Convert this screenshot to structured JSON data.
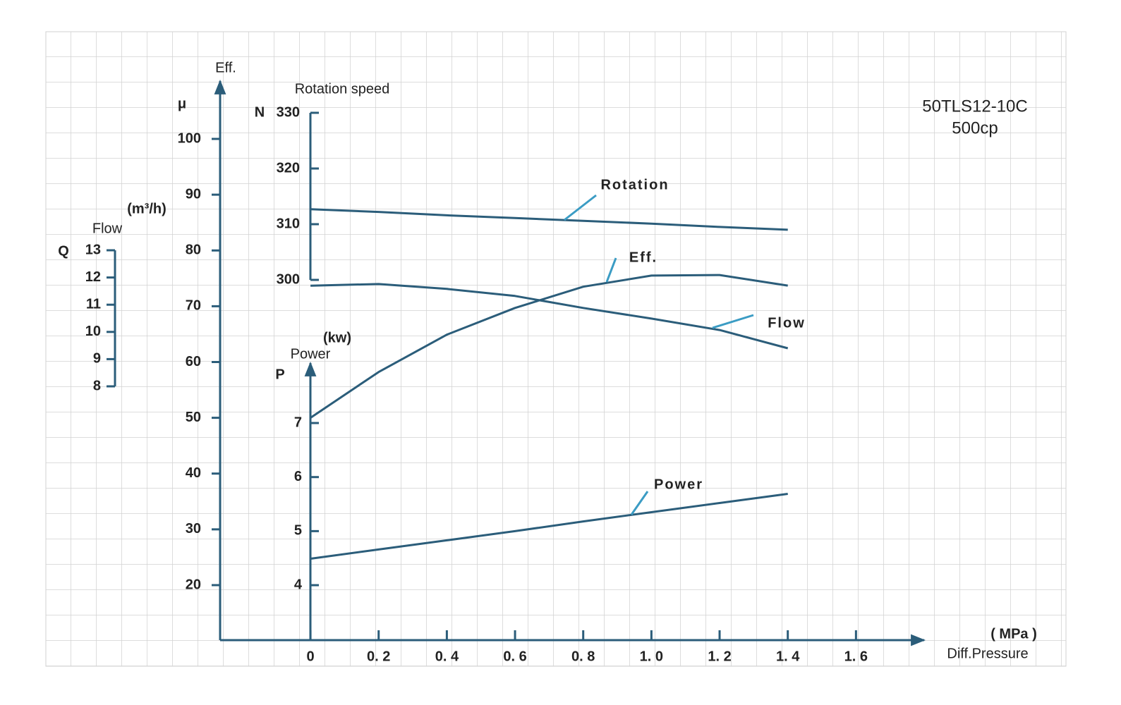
{
  "chart_data": {
    "type": "line",
    "title": "50TLS12-10C",
    "subtitle": "500cp",
    "x_label": "Diff.Pressure",
    "x_unit": "( MPa )",
    "xlim": [
      -0.265,
      1.8
    ],
    "xticks": [
      0,
      {
        "value": 0.2,
        "label": "0. 2"
      },
      {
        "value": 0.4,
        "label": "0. 4"
      },
      {
        "value": 0.6,
        "label": "0. 6"
      },
      {
        "value": 0.8,
        "label": "0. 8"
      },
      {
        "value": 1.0,
        "label": "1. 0"
      },
      {
        "value": 1.2,
        "label": "1. 2"
      },
      {
        "value": 1.4,
        "label": "1. 4"
      },
      {
        "value": 1.6,
        "label": "1. 6"
      }
    ],
    "x": [
      0,
      0.2,
      0.4,
      0.6,
      0.8,
      1.0,
      1.2,
      1.4
    ],
    "axes": [
      {
        "label": "Eff.",
        "symbol": "μ",
        "ylim": [
          10,
          110
        ],
        "yticks": [
          20,
          30,
          40,
          50,
          60,
          70,
          80,
          90,
          100
        ]
      },
      {
        "label": "Rotation speed",
        "symbol": "N",
        "ylim": [
          300,
          330
        ],
        "yticks": [
          300,
          310,
          320,
          330
        ]
      },
      {
        "label": "Flow",
        "unit": "(m³/h)",
        "symbol": "Q",
        "ylim": [
          8,
          13
        ],
        "yticks": [
          8,
          9,
          10,
          11,
          12,
          13
        ]
      },
      {
        "label": "Power",
        "unit": "(kw)",
        "symbol": "P",
        "ylim": [
          3,
          8.1
        ],
        "yticks": [
          4,
          5,
          6,
          7
        ]
      }
    ],
    "series": [
      {
        "name": "Rotation",
        "axis": 1,
        "color": "#2b5d7a",
        "values": [
          312.7,
          312.2,
          311.6,
          311.1,
          310.6,
          310.1,
          309.5,
          309.0
        ]
      },
      {
        "name": "Eff.",
        "axis": 0,
        "color": "#2b5d7a",
        "values": [
          50,
          58.2,
          64.9,
          69.7,
          73.5,
          75.5,
          75.6,
          73.7
        ]
      },
      {
        "name": "Flow",
        "axis": 2,
        "color": "#2b5d7a",
        "values": [
          11.7,
          11.76,
          11.58,
          11.32,
          10.88,
          10.49,
          10.07,
          9.4
        ]
      },
      {
        "name": "Power",
        "axis": 3,
        "color": "#2b5d7a",
        "values": [
          4.49,
          4.66,
          4.83,
          5.0,
          5.18,
          5.35,
          5.52,
          5.69
        ]
      }
    ]
  }
}
